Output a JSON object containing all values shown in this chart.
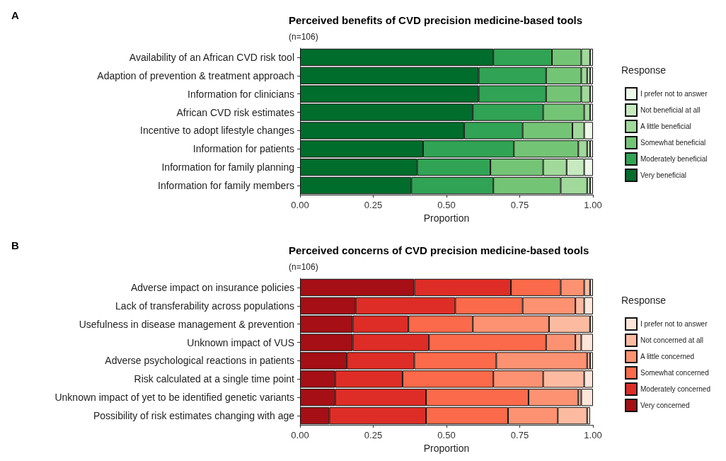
{
  "chart_data": [
    {
      "type": "bar",
      "orientation": "horizontal",
      "stacked": true,
      "title": "Perceived benefits of CVD precision medicine-based tools",
      "subtitle": "(n=106)",
      "xlabel": "Proportion",
      "legend_title": "Response",
      "legend": "right",
      "grid": false,
      "annotations": [
        "A"
      ],
      "categories": [
        "Availability of an African CVD risk tool",
        "Adaption of prevention & treatment approach",
        "Information for clinicians",
        "African CVD risk estimates",
        "Incentive to adopt lifestyle changes",
        "Information for patients",
        "Information for family planning",
        "Information for family members"
      ],
      "xlim": [
        0,
        1
      ],
      "xticks": [
        {
          "value": 0,
          "label": "0.00"
        },
        {
          "value": 0.25,
          "label": "0.25"
        },
        {
          "value": 0.5,
          "label": "0.50"
        },
        {
          "value": 0.75,
          "label": "0.75"
        },
        {
          "value": 1,
          "label": "1.00"
        }
      ],
      "series": [
        {
          "name": "Very beneficial",
          "color": "#006d2c",
          "values": [
            0.66,
            0.61,
            0.61,
            0.59,
            0.56,
            0.42,
            0.4,
            0.38
          ]
        },
        {
          "name": "Moderately beneficial",
          "color": "#31a354",
          "values": [
            0.2,
            0.23,
            0.23,
            0.24,
            0.2,
            0.31,
            0.25,
            0.28
          ]
        },
        {
          "name": "Somewhat beneficial",
          "color": "#74c476",
          "values": [
            0.1,
            0.12,
            0.12,
            0.14,
            0.17,
            0.22,
            0.18,
            0.23
          ]
        },
        {
          "name": "A little beneficial",
          "color": "#a1d99b",
          "values": [
            0.03,
            0.02,
            0.03,
            0.02,
            0.04,
            0.03,
            0.08,
            0.09
          ]
        },
        {
          "name": "Not beneficial at all",
          "color": "#c7e9c0",
          "values": [
            0,
            0.01,
            0,
            0,
            0,
            0.01,
            0.06,
            0.01
          ]
        },
        {
          "name": "I prefer not to answer",
          "color": "#edf8e9",
          "values": [
            0.01,
            0.01,
            0.01,
            0.01,
            0.03,
            0.01,
            0.03,
            0.01
          ]
        }
      ]
    },
    {
      "type": "bar",
      "orientation": "horizontal",
      "stacked": true,
      "title": "Perceived concerns of CVD precision medicine-based tools",
      "subtitle": "(n=106)",
      "xlabel": "Proportion",
      "legend_title": "Response",
      "legend": "right",
      "grid": false,
      "annotations": [
        "B"
      ],
      "categories": [
        "Adverse impact on insurance policies",
        "Lack of transferability across populations",
        "Usefulness in disease management & prevention",
        "Unknown impact of VUS",
        "Adverse psychological reactions in patients",
        "Risk calculated at a single time point",
        "Unknown impact of yet to be identified genetic variants",
        "Possibility of risk estimates changing with age"
      ],
      "xlim": [
        0,
        1
      ],
      "xticks": [
        {
          "value": 0,
          "label": "0.00"
        },
        {
          "value": 0.25,
          "label": "0.25"
        },
        {
          "value": 0.5,
          "label": "0.50"
        },
        {
          "value": 0.75,
          "label": "0.75"
        },
        {
          "value": 1,
          "label": "1.00"
        }
      ],
      "series": [
        {
          "name": "Very concerned",
          "color": "#a50f15",
          "values": [
            0.39,
            0.19,
            0.18,
            0.18,
            0.16,
            0.12,
            0.12,
            0.1
          ]
        },
        {
          "name": "Moderately concerned",
          "color": "#de2d26",
          "values": [
            0.33,
            0.34,
            0.19,
            0.26,
            0.23,
            0.23,
            0.31,
            0.33
          ]
        },
        {
          "name": "Somewhat concerned",
          "color": "#fb6a4a",
          "values": [
            0.17,
            0.23,
            0.22,
            0.4,
            0.28,
            0.31,
            0.35,
            0.28
          ]
        },
        {
          "name": "A little concerned",
          "color": "#fc9272",
          "values": [
            0.08,
            0.18,
            0.26,
            0.1,
            0.31,
            0.17,
            0.17,
            0.17
          ]
        },
        {
          "name": "Not concerned at all",
          "color": "#fcbba1",
          "values": [
            0.02,
            0.03,
            0.14,
            0.02,
            0.01,
            0.14,
            0.01,
            0.1
          ]
        },
        {
          "name": "I prefer not to answer",
          "color": "#fee5d9",
          "values": [
            0.01,
            0.03,
            0.01,
            0.04,
            0.01,
            0.03,
            0.04,
            0.01
          ]
        }
      ]
    }
  ]
}
